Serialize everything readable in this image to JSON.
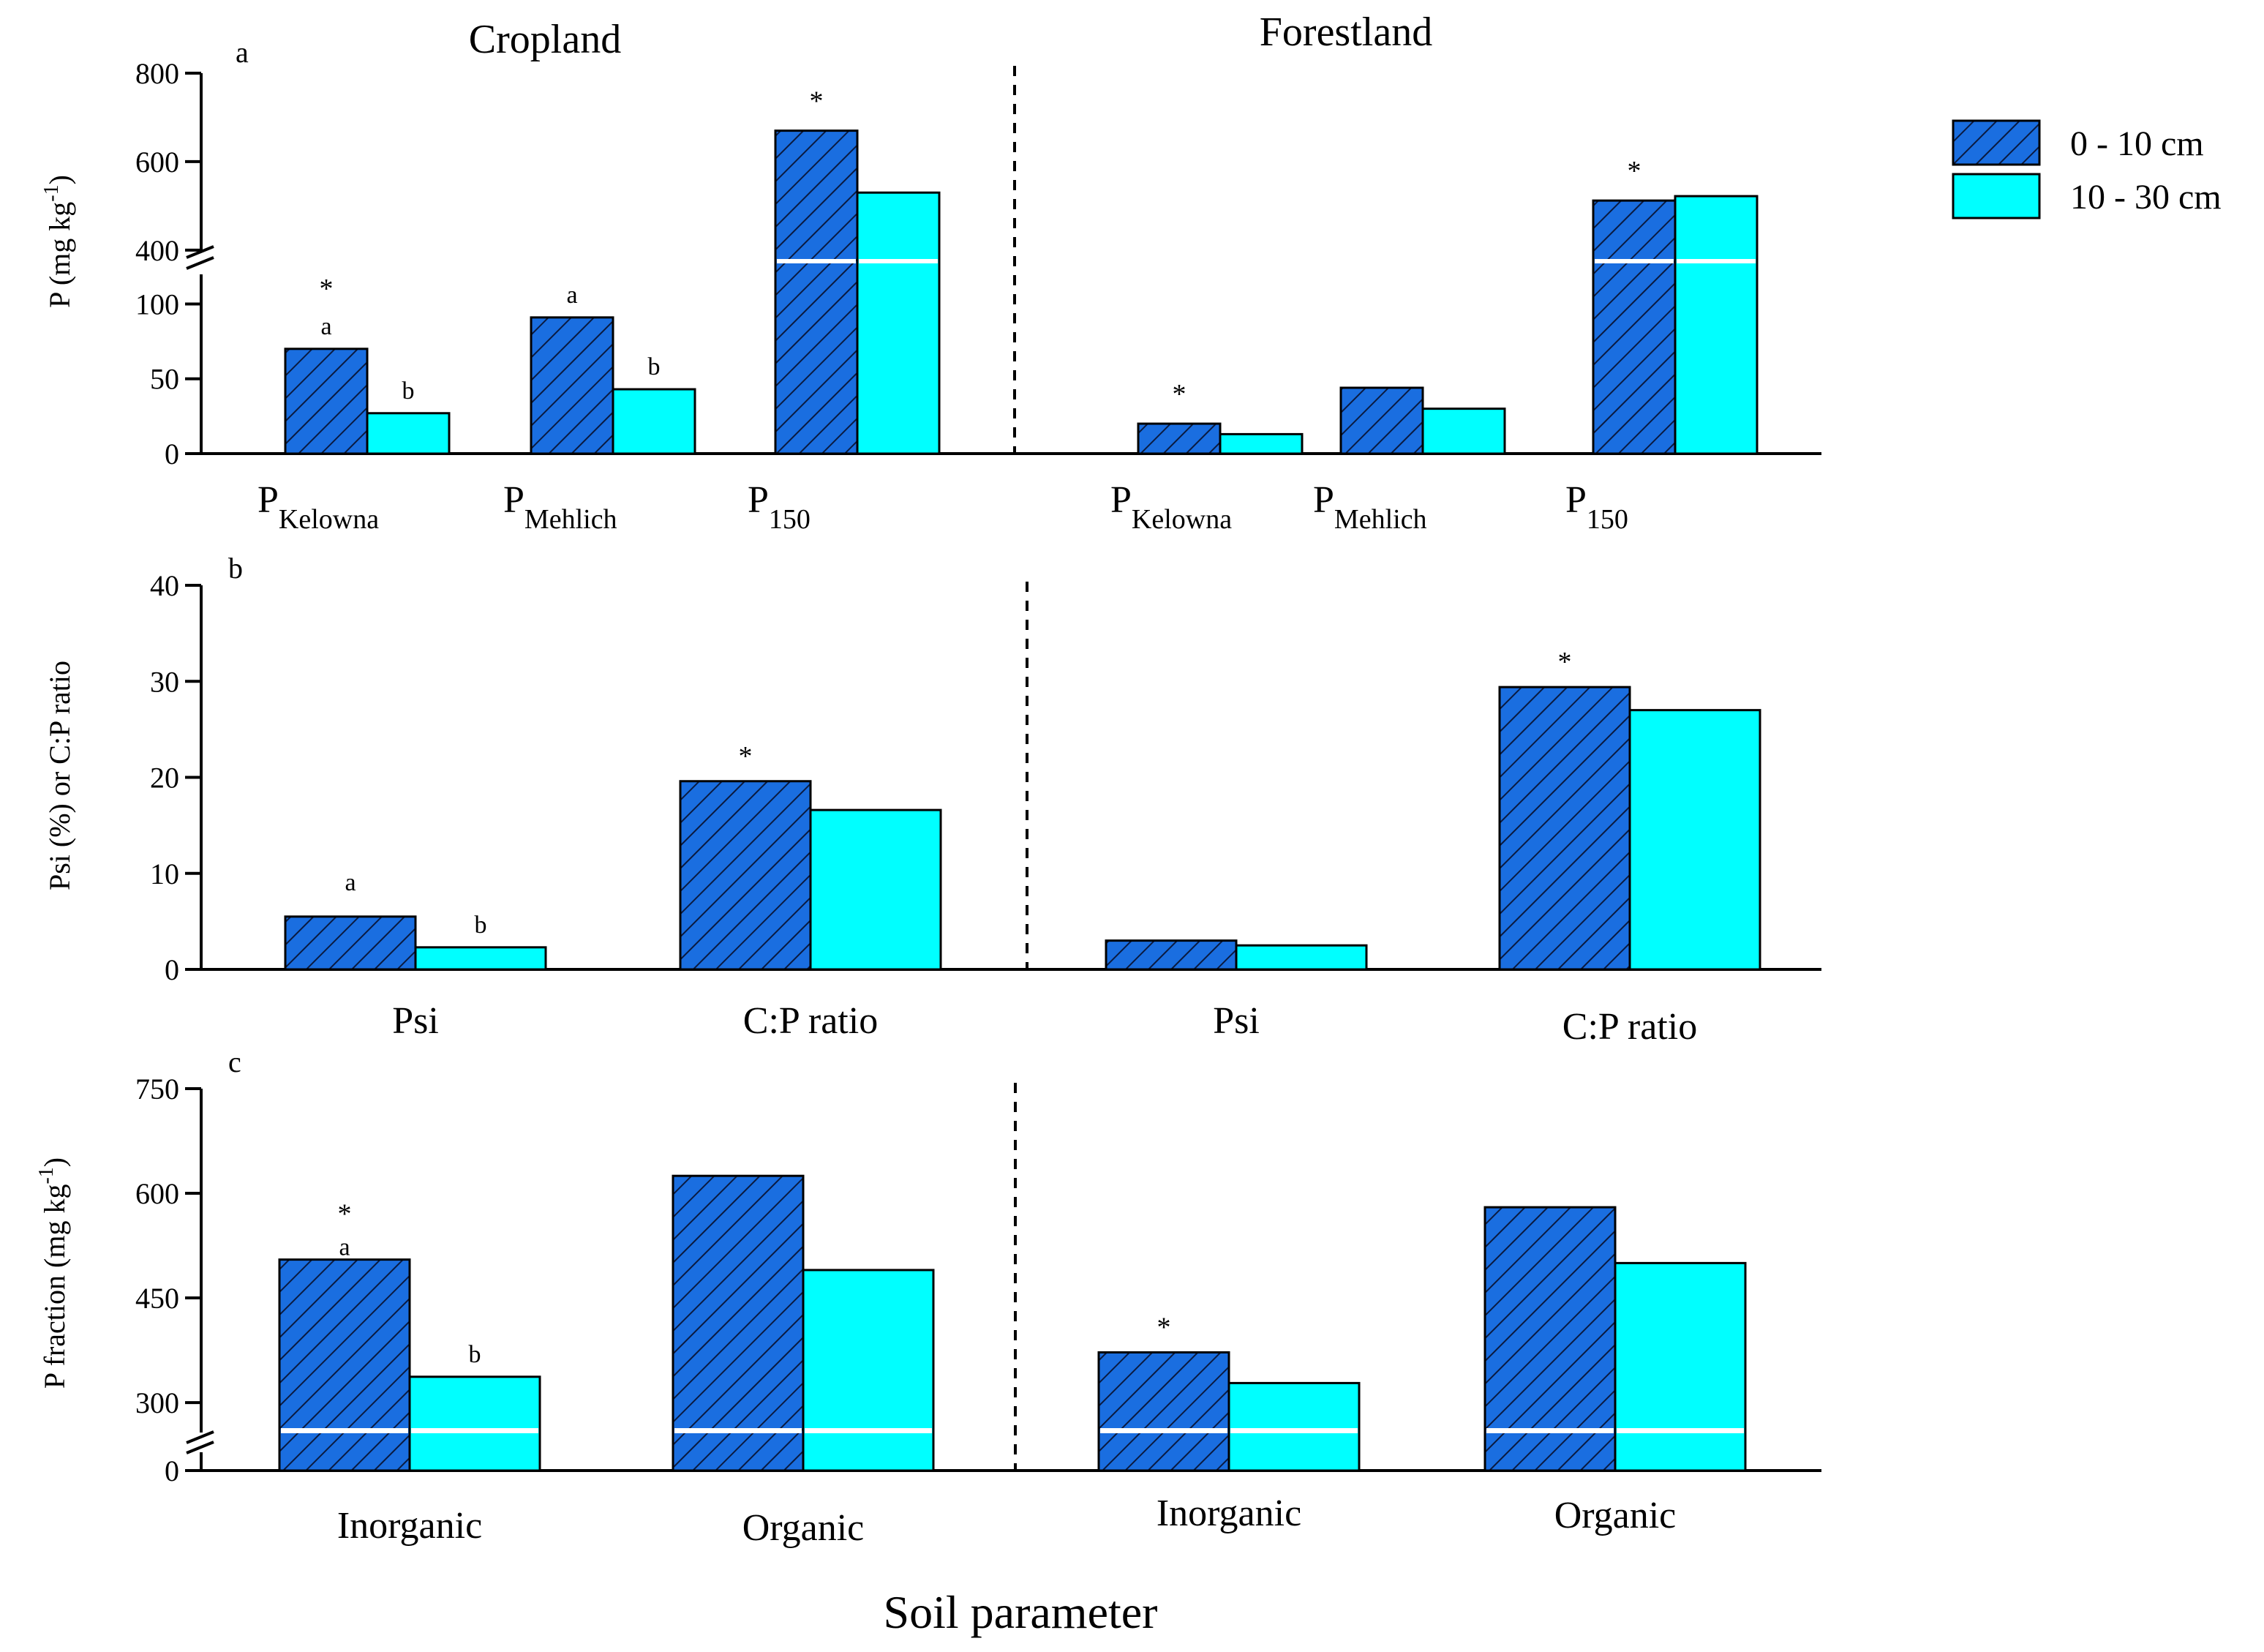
{
  "legend": {
    "colors": [
      "#1a6ee0",
      "#00ffff"
    ]
  },
  "chart_data": [
    {
      "panel_label": "a",
      "type": "bar",
      "ylabel": "P (mg kg",
      "ylabel_sup": "-1",
      "ylabel_close": ")",
      "regions": [
        "Cropland",
        "Forestland"
      ],
      "categories": [
        {
          "main": "P",
          "sub": "Kelowna"
        },
        {
          "main": "P",
          "sub": "Mehlich"
        },
        {
          "main": "P",
          "sub": "150"
        },
        {
          "main": "P",
          "sub": "Kelowna"
        },
        {
          "main": "P",
          "sub": "Mehlich"
        },
        {
          "main": "P",
          "sub": "150"
        }
      ],
      "series": [
        {
          "name": "0 - 10 cm",
          "color": "#1a6ee0",
          "hatched": true,
          "values": [
            70,
            91,
            670,
            20,
            44,
            512
          ]
        },
        {
          "name": "10 - 30 cm",
          "color": "#00ffff",
          "hatched": false,
          "values": [
            27,
            43,
            530,
            13,
            30,
            522
          ]
        }
      ],
      "axis_break": {
        "lower_range": [
          0,
          110
        ],
        "upper_range": [
          370,
          800
        ]
      },
      "yticks_lower": [
        "0",
        "50",
        "100"
      ],
      "yticks_upper": [
        "400",
        "600",
        "800"
      ],
      "annotations": {
        "series0_above": [
          "a",
          "a",
          "",
          "",
          "",
          ""
        ],
        "series1_above": [
          "b",
          "b",
          "",
          "",
          "",
          ""
        ],
        "stars": [
          "*",
          "",
          "*",
          "*",
          "",
          "*"
        ]
      }
    },
    {
      "panel_label": "b",
      "type": "bar",
      "ylabel": "Psi (%) or C:P ratio",
      "categories": [
        "Psi",
        "C:P ratio",
        "Psi",
        "C:P ratio"
      ],
      "series": [
        {
          "name": "0 - 10 cm",
          "color": "#1a6ee0",
          "hatched": true,
          "values": [
            5.5,
            19.6,
            3.0,
            29.4
          ]
        },
        {
          "name": "10 - 30 cm",
          "color": "#00ffff",
          "hatched": false,
          "values": [
            2.3,
            16.6,
            2.5,
            27.0
          ]
        }
      ],
      "ylim": [
        0,
        40
      ],
      "yticks": [
        "0",
        "10",
        "20",
        "30",
        "40"
      ],
      "annotations": {
        "series0_above": [
          "a",
          "",
          "",
          ""
        ],
        "series1_above": [
          "b",
          "",
          "",
          ""
        ],
        "stars": [
          "",
          "*",
          "",
          "*"
        ]
      }
    },
    {
      "panel_label": "c",
      "type": "bar",
      "ylabel": "P fraction (mg kg",
      "ylabel_sup": "-1",
      "ylabel_close": ")",
      "categories": [
        "Inorganic",
        "Organic",
        "Inorganic",
        "Organic"
      ],
      "series": [
        {
          "name": "0 - 10 cm",
          "color": "#1a6ee0",
          "hatched": true,
          "values": [
            505,
            625,
            372,
            580
          ]
        },
        {
          "name": "10 - 30 cm",
          "color": "#00ffff",
          "hatched": false,
          "values": [
            337,
            490,
            328,
            500
          ]
        }
      ],
      "axis_break": {
        "lower_tick": "0",
        "upper_range": [
          255,
          750
        ]
      },
      "yticks_upper": [
        "300",
        "450",
        "600",
        "750"
      ],
      "annotations": {
        "series0_above": [
          "a",
          "",
          "",
          ""
        ],
        "series1_above": [
          "b",
          "",
          "",
          ""
        ],
        "stars": [
          "*",
          "",
          "*",
          ""
        ]
      }
    }
  ],
  "x_title": "Soil parameter"
}
